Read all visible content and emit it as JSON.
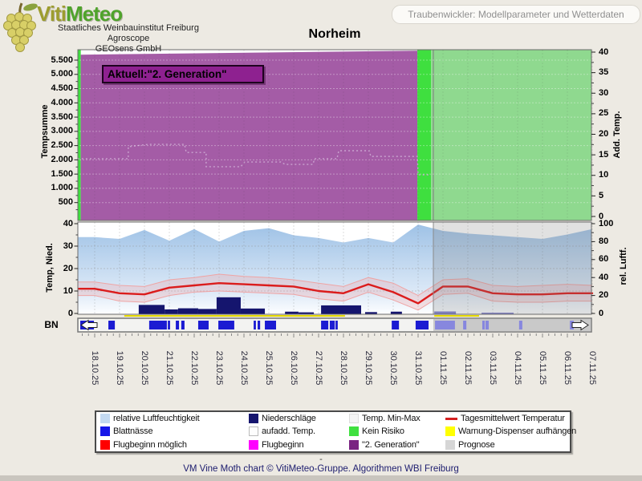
{
  "header": {
    "brand_viti": "Viti",
    "brand_meteo": "Meteo",
    "subtitle_lines": [
      "Staatliches Weinbauinstitut Freiburg",
      "Agroscope",
      "GEOsens GmbH"
    ],
    "toolbar_button": "Traubenwickler: Modellparameter und Wetterdaten"
  },
  "title": "Norheim",
  "chart_data": [
    {
      "type": "area",
      "name": "generation-risk-chart",
      "annotation": "Aktuell:\"2. Generation\"",
      "y_left": {
        "label": "Tempsumme",
        "ticks": [
          "5.500",
          "5.000",
          "4.500",
          "4.000",
          "3.500",
          "3.000",
          "2.500",
          "2.000",
          "1.500",
          "1.000",
          "500"
        ],
        "range": [
          0,
          5860
        ]
      },
      "y_right": {
        "label": "Add. Temp.",
        "ticks": [
          "40",
          "35",
          "30",
          "25",
          "20",
          "15",
          "10",
          "5",
          "0"
        ],
        "range": [
          0,
          41
        ]
      },
      "zones": [
        {
          "label": "Kein Risiko",
          "color": "#3FDF3F",
          "from_day": -0.68,
          "to_day": -0.56
        },
        {
          "label": "2. Generation",
          "color": "#A45CA6",
          "from_day": -0.56,
          "to_day": 12.97,
          "top_values": [
            5690,
            5830
          ]
        },
        {
          "label": "Kein Risiko",
          "color": "#3FDF3F",
          "from_day": 12.97,
          "to_day": 13.52
        },
        {
          "label": "Kein Risiko (Prognose)",
          "color": "#8FD98F",
          "from_day": 13.52,
          "to_day": 19.97
        }
      ],
      "aufadd_temp_steps": [
        [
          -0.68,
          2040
        ],
        [
          1.35,
          2040
        ],
        [
          1.35,
          2460
        ],
        [
          2.16,
          2545
        ],
        [
          3.61,
          2545
        ],
        [
          3.68,
          2260
        ],
        [
          4.48,
          2260
        ],
        [
          4.48,
          1760
        ],
        [
          5.87,
          1760
        ],
        [
          6.03,
          1925
        ],
        [
          7.48,
          1925
        ],
        [
          7.65,
          1840
        ],
        [
          8.77,
          1840
        ],
        [
          8.84,
          2040
        ],
        [
          9.74,
          2040
        ],
        [
          9.81,
          2320
        ],
        [
          11.03,
          2320
        ],
        [
          11.1,
          2120
        ],
        [
          12.97,
          2120
        ],
        [
          13.0,
          1475
        ],
        [
          13.52,
          1475
        ]
      ]
    },
    {
      "type": "line",
      "name": "weather-chart",
      "x_dates": [
        "18.10.25",
        "19.10.25",
        "20.10.25",
        "21.10.25",
        "22.10.25",
        "23.10.25",
        "24.10.25",
        "25.10.25",
        "26.10.25",
        "27.10.25",
        "28.10.25",
        "29.10.25",
        "30.10.25",
        "31.10.25",
        "01.11.25",
        "02.11.25",
        "03.11.25",
        "04.11.25",
        "05.11.25",
        "06.11.25",
        "07.11.25"
      ],
      "y_left": {
        "label": "Temp, Nied.",
        "ticks": [
          "40",
          "30",
          "20",
          "10",
          "0"
        ],
        "range": [
          0,
          41
        ]
      },
      "y_right": {
        "label": "rel. Luftf.",
        "ticks": [
          "100",
          "80",
          "60",
          "40",
          "20",
          "0"
        ],
        "range": [
          0,
          102
        ]
      },
      "forecast_from_day": 13.6,
      "series": {
        "temp_mean": {
          "name": "Tagesmittelwert Temperatur",
          "color": "#DB1C1C",
          "values": [
            11,
            9,
            8.5,
            11.5,
            12.5,
            13.5,
            13,
            12.5,
            12,
            10,
            9,
            13,
            9.5,
            4.5,
            12,
            12,
            9,
            8.5,
            8.5,
            9,
            9
          ]
        },
        "temp_max": [
          14,
          12.5,
          12,
          15,
          16,
          17.5,
          16.5,
          16,
          15,
          13.5,
          12,
          16,
          13.5,
          8,
          15,
          15.5,
          12.5,
          12,
          12.5,
          13,
          12.5
        ],
        "temp_min": [
          8,
          5.5,
          5,
          8,
          9.5,
          10,
          9.5,
          9,
          8.5,
          6.5,
          5.5,
          9.5,
          6,
          1.5,
          8.5,
          9,
          5.5,
          5,
          5,
          5.5,
          5.5
        ],
        "humidity": {
          "name": "relative Luftfeuchtigkeit",
          "values": [
            85,
            83,
            93,
            81,
            94,
            80,
            92,
            95,
            87,
            84,
            79,
            84,
            79,
            99,
            92,
            89,
            87,
            85,
            83,
            88,
            94
          ]
        },
        "precipitation": {
          "name": "Niederschläge",
          "bars": [
            [
              1.77,
              2.81,
              3.8,
              0
            ],
            [
              2.81,
              3.35,
              1.8,
              0
            ],
            [
              3.35,
              4.16,
              2.3,
              0
            ],
            [
              4.16,
              4.9,
              2.0,
              0
            ],
            [
              4.9,
              5.87,
              7.2,
              0
            ],
            [
              5.87,
              6.84,
              2.2,
              0
            ],
            [
              7.65,
              8.19,
              0.8,
              0
            ],
            [
              8.19,
              8.81,
              0.5,
              0
            ],
            [
              9.1,
              10.71,
              3.6,
              0
            ],
            [
              10.87,
              11.35,
              0.6,
              0
            ],
            [
              11.9,
              12.35,
              0.8,
              0
            ],
            [
              13.65,
              14.52,
              0.9,
              1
            ],
            [
              15.55,
              16.84,
              0.35,
              1
            ]
          ]
        },
        "leaf_wetness": {
          "name": "Blattnässe",
          "label": "BN",
          "segments": [
            [
              -0.58,
              -0.03,
              0
            ],
            [
              0.55,
              0.81,
              0
            ],
            [
              2.19,
              2.9,
              0
            ],
            [
              2.94,
              3.03,
              0
            ],
            [
              3.26,
              3.39,
              0
            ],
            [
              3.48,
              3.61,
              0
            ],
            [
              4.16,
              4.58,
              0
            ],
            [
              4.97,
              5.61,
              0
            ],
            [
              6.39,
              6.48,
              0
            ],
            [
              6.55,
              6.65,
              0
            ],
            [
              6.84,
              7.29,
              0
            ],
            [
              9.1,
              9.39,
              0
            ],
            [
              9.45,
              9.65,
              0
            ],
            [
              9.68,
              9.77,
              0
            ],
            [
              11.94,
              12.23,
              0
            ],
            [
              12.9,
              13.42,
              0
            ],
            [
              13.68,
              14.48,
              1
            ],
            [
              14.81,
              14.94,
              1
            ],
            [
              15.58,
              15.68,
              1
            ],
            [
              15.71,
              15.84,
              1
            ],
            [
              17.06,
              17.19,
              1
            ],
            [
              19.1,
              19.26,
              1
            ]
          ]
        },
        "warning_line": {
          "name": "Warnung-Dispenser aufhängen",
          "segments": [
            [
              1.19,
              10.06
            ],
            [
              13.65,
              15.45
            ]
          ]
        }
      }
    }
  ],
  "legend": {
    "items": [
      {
        "label": "relative Luftfeuchtigkeit",
        "color": "#C3D9F1",
        "kind": "box"
      },
      {
        "label": "Niederschläge",
        "color": "#15156E",
        "kind": "box"
      },
      {
        "label": "Temp. Min-Max",
        "color": "#F4F4F4",
        "kind": "box",
        "border": "#DDDDDD"
      },
      {
        "label": "Tagesmittelwert Temperatur",
        "color": "#D42020",
        "kind": "line"
      },
      {
        "label": "Blattnässe",
        "color": "#1616E8",
        "kind": "box"
      },
      {
        "label": "aufadd. Temp.",
        "color": "#FDFDFD",
        "kind": "box",
        "border": "#BBBBBB"
      },
      {
        "label": "Kein Risiko",
        "color": "#3FE03F",
        "kind": "box"
      },
      {
        "label": "Warnung-Dispenser aufhängen",
        "color": "#FFFF00",
        "kind": "box"
      },
      {
        "label": "Flugbeginn möglich",
        "color": "#FF0000",
        "kind": "box"
      },
      {
        "label": "Flugbeginn",
        "color": "#FF00FF",
        "kind": "box"
      },
      {
        "label": "\"2. Generation\"",
        "color": "#7A2382",
        "kind": "box"
      },
      {
        "label": "Prognose",
        "color": "#D6D6D6",
        "kind": "box"
      }
    ]
  },
  "footer": {
    "dash": "-",
    "credit": "VM Vine Moth chart © VitiMeteo-Gruppe. Algorithmen WBI Freiburg"
  }
}
